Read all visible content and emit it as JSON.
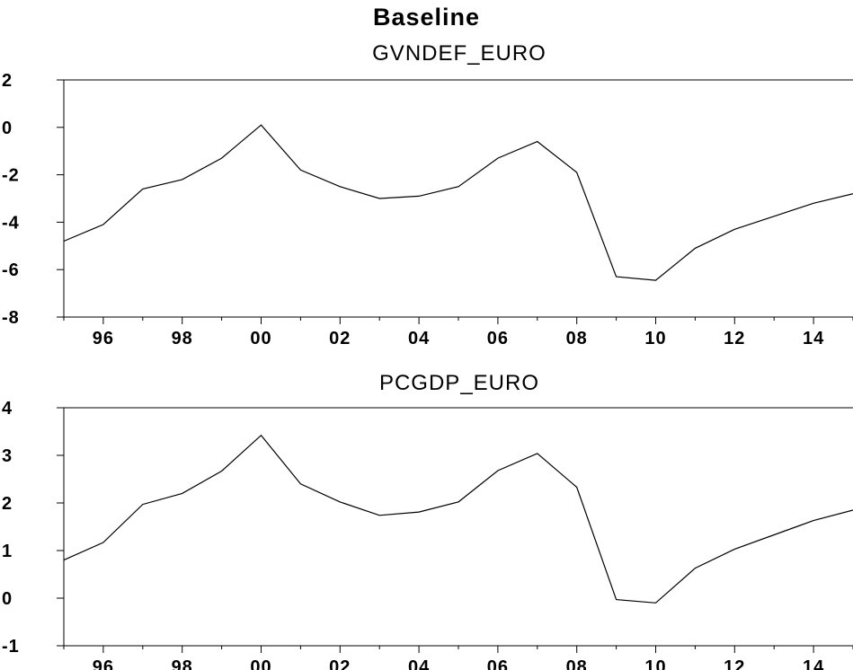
{
  "title": "Baseline",
  "chart_data": [
    {
      "type": "line",
      "title": "GVNDEF_EURO",
      "x": [
        1995,
        1996,
        1997,
        1998,
        1999,
        2000,
        2001,
        2002,
        2003,
        2004,
        2005,
        2006,
        2007,
        2008,
        2009,
        2010,
        2011,
        2012,
        2013,
        2014,
        2015
      ],
      "values": [
        -4.8,
        -4.1,
        -2.6,
        -2.2,
        -1.3,
        0.1,
        -1.8,
        -2.5,
        -3.0,
        -2.9,
        -2.5,
        -1.3,
        -0.6,
        -1.9,
        -6.3,
        -6.45,
        -5.1,
        -4.3,
        -3.75,
        -3.2,
        -2.8
      ],
      "ylim": [
        -8,
        2
      ],
      "yticks": [
        "2",
        "0",
        "-2",
        "-4",
        "-6",
        "-8"
      ],
      "xticks": [
        "96",
        "98",
        "00",
        "02",
        "04",
        "06",
        "08",
        "10",
        "12",
        "14"
      ],
      "xlabel": "",
      "ylabel": "",
      "grid": false
    },
    {
      "type": "line",
      "title": "PCGDP_EURO",
      "x": [
        1995,
        1996,
        1997,
        1998,
        1999,
        2000,
        2001,
        2002,
        2003,
        2004,
        2005,
        2006,
        2007,
        2008,
        2009,
        2010,
        2011,
        2012,
        2013,
        2014,
        2015
      ],
      "values": [
        0.8,
        1.17,
        1.97,
        2.2,
        2.67,
        3.42,
        2.4,
        2.02,
        1.74,
        1.81,
        2.02,
        2.68,
        3.04,
        2.33,
        -0.03,
        -0.1,
        0.63,
        1.03,
        1.33,
        1.63,
        1.85
      ],
      "ylim": [
        -1,
        4
      ],
      "yticks": [
        "4",
        "3",
        "2",
        "1",
        "0",
        "-1"
      ],
      "xticks": [
        "96",
        "98",
        "00",
        "02",
        "04",
        "06",
        "08",
        "10",
        "12",
        "14"
      ],
      "xlabel": "",
      "ylabel": "",
      "grid": false
    }
  ]
}
